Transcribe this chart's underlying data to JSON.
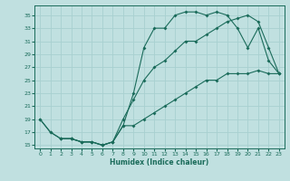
{
  "bg_color": "#c0e0e0",
  "line_color": "#1a6b5a",
  "grid_color": "#a8d0d0",
  "xlabel": "Humidex (Indice chaleur)",
  "ylim": [
    14.5,
    36.5
  ],
  "xlim": [
    -0.5,
    23.5
  ],
  "yticks": [
    15,
    17,
    19,
    21,
    23,
    25,
    27,
    29,
    31,
    33,
    35
  ],
  "xticks": [
    0,
    1,
    2,
    3,
    4,
    5,
    6,
    7,
    8,
    9,
    10,
    11,
    12,
    13,
    14,
    15,
    16,
    17,
    18,
    19,
    20,
    21,
    22,
    23
  ],
  "line_upper_x": [
    0,
    1,
    2,
    3,
    4,
    5,
    6,
    7,
    8,
    9,
    10,
    11,
    12,
    13,
    14,
    15,
    16,
    17,
    18,
    19,
    20,
    21,
    22,
    23
  ],
  "line_upper_y": [
    19,
    17,
    16,
    16,
    15.5,
    15.5,
    15,
    15.5,
    18,
    23,
    30,
    33,
    33,
    35,
    35.5,
    35.5,
    35,
    35.5,
    35,
    33,
    30,
    33,
    28,
    26
  ],
  "line_mid_x": [
    0,
    1,
    2,
    3,
    4,
    5,
    6,
    7,
    8,
    9,
    10,
    11,
    12,
    13,
    14,
    15,
    16,
    17,
    18,
    19,
    20,
    21,
    22,
    23
  ],
  "line_mid_y": [
    19,
    17,
    16,
    16,
    15.5,
    15.5,
    15,
    15.5,
    19,
    22,
    25,
    27,
    28,
    29.5,
    31,
    31,
    32,
    33,
    34,
    34.5,
    35,
    34,
    30,
    26
  ],
  "line_lower_x": [
    2,
    3,
    4,
    5,
    6,
    7,
    8,
    9,
    10,
    11,
    12,
    13,
    14,
    15,
    16,
    17,
    18,
    19,
    20,
    21,
    22,
    23
  ],
  "line_lower_y": [
    16,
    16,
    15.5,
    15.5,
    15,
    15.5,
    18,
    18,
    19,
    20,
    21,
    22,
    23,
    24,
    25,
    25,
    26,
    26,
    26,
    26.5,
    26,
    26
  ]
}
